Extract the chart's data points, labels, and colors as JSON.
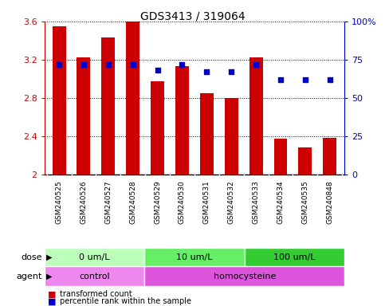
{
  "title": "GDS3413 / 319064",
  "samples": [
    "GSM240525",
    "GSM240526",
    "GSM240527",
    "GSM240528",
    "GSM240529",
    "GSM240530",
    "GSM240531",
    "GSM240532",
    "GSM240533",
    "GSM240534",
    "GSM240535",
    "GSM240848"
  ],
  "bar_values": [
    3.55,
    3.22,
    3.43,
    3.6,
    2.97,
    3.13,
    2.85,
    2.8,
    3.22,
    2.37,
    2.28,
    2.38
  ],
  "scatter_values": [
    72,
    72,
    72,
    72,
    68,
    72,
    67,
    67,
    72,
    62,
    62,
    62
  ],
  "bar_color": "#cc0000",
  "scatter_color": "#0000cc",
  "ylim_left": [
    2.0,
    3.6
  ],
  "ylim_right": [
    0,
    100
  ],
  "yticks_left": [
    2.0,
    2.4,
    2.8,
    3.2,
    3.6
  ],
  "ytick_labels_left": [
    "2",
    "2.4",
    "2.8",
    "3.2",
    "3.6"
  ],
  "yticks_right": [
    0,
    25,
    50,
    75,
    100
  ],
  "ytick_labels_right": [
    "0",
    "25",
    "50",
    "75",
    "100%"
  ],
  "dose_groups": [
    {
      "label": "0 um/L",
      "start": 0,
      "end": 4,
      "color": "#bbffbb"
    },
    {
      "label": "10 um/L",
      "start": 4,
      "end": 8,
      "color": "#66ee66"
    },
    {
      "label": "100 um/L",
      "start": 8,
      "end": 12,
      "color": "#33cc33"
    }
  ],
  "agent_groups": [
    {
      "label": "control",
      "start": 0,
      "end": 4,
      "color": "#ee88ee"
    },
    {
      "label": "homocysteine",
      "start": 4,
      "end": 12,
      "color": "#dd55dd"
    }
  ],
  "legend_bar_label": "transformed count",
  "legend_scatter_label": "percentile rank within the sample",
  "background_color": "#ffffff",
  "xlabel_bg_color": "#cccccc",
  "dose_label": "dose",
  "agent_label": "agent"
}
